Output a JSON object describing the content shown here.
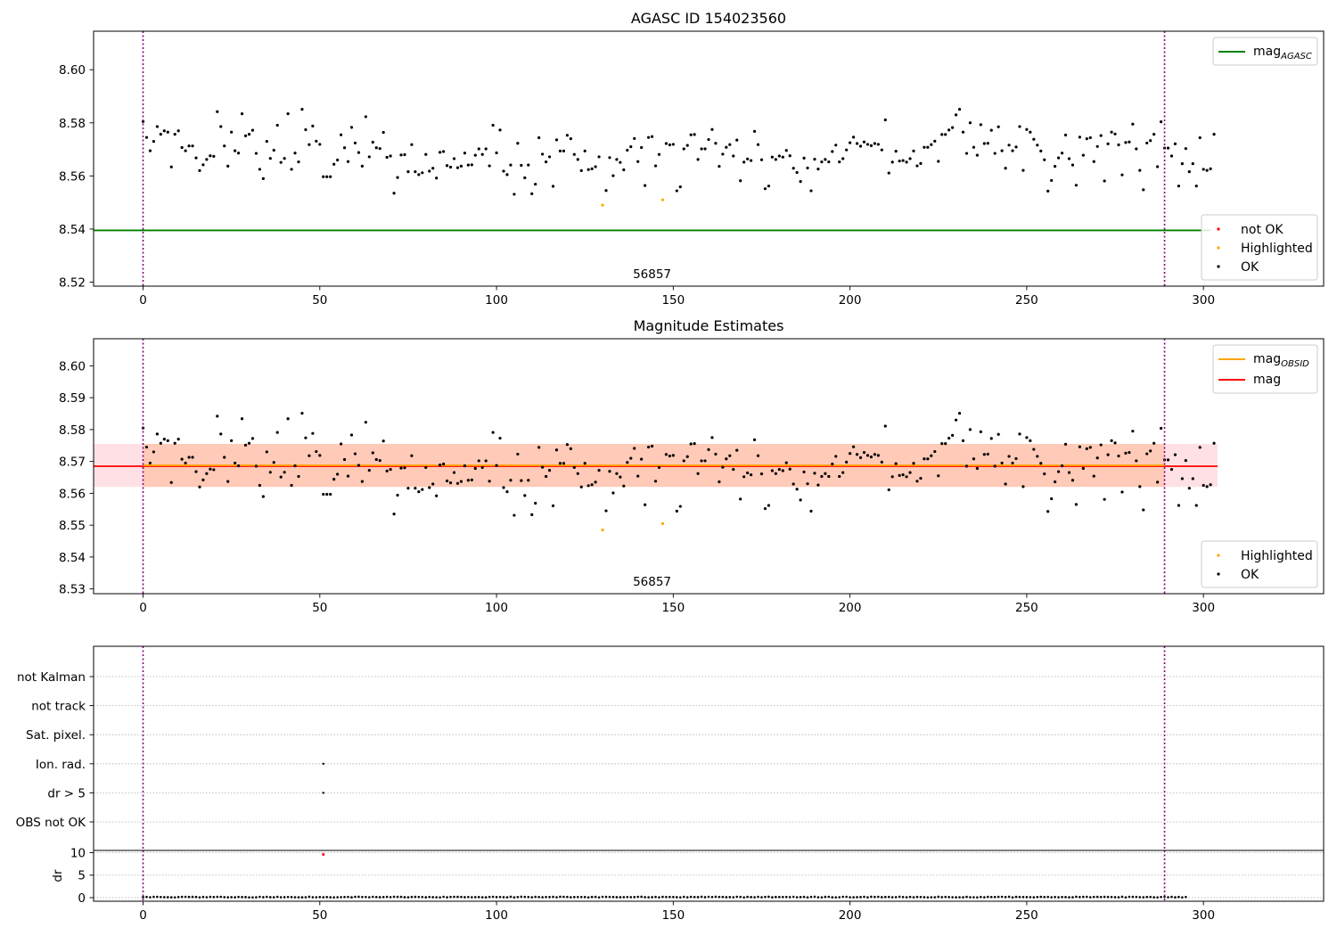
{
  "chart_data": [
    {
      "id": "agasc",
      "type": "scatter",
      "title": "AGASC ID 154023560",
      "annotation": "56857",
      "xlim": [
        -14,
        334
      ],
      "ylim": [
        8.5185,
        8.6145
      ],
      "xticks": [
        0,
        50,
        100,
        150,
        200,
        250,
        300
      ],
      "yticks": [
        8.52,
        8.54,
        8.56,
        8.58,
        8.6
      ],
      "ytick_labels": [
        "8.52",
        "8.54",
        "8.56",
        "8.58",
        "8.60"
      ],
      "vlines": [
        0,
        289
      ],
      "mag_agasc": 8.5395,
      "legend_lines": [
        {
          "label": "mag",
          "sub": "AGASC",
          "color": "#008000"
        }
      ],
      "legend_points": [
        {
          "label": "not OK",
          "color": "#ff0000"
        },
        {
          "label": "Highlighted",
          "color": "#ffa500"
        },
        {
          "label": "OK",
          "color": "#000000"
        }
      ],
      "highlighted": [
        [
          130,
          8.549
        ],
        [
          147,
          8.551
        ]
      ]
    },
    {
      "id": "estimates",
      "type": "scatter",
      "title": "Magnitude Estimates",
      "annotation": "56857",
      "xlim": [
        -14,
        334
      ],
      "ylim": [
        8.5285,
        8.6085
      ],
      "xticks": [
        0,
        50,
        100,
        150,
        200,
        250,
        300
      ],
      "yticks": [
        8.53,
        8.54,
        8.55,
        8.56,
        8.57,
        8.58,
        8.59,
        8.6
      ],
      "ytick_labels": [
        "8.53",
        "8.54",
        "8.55",
        "8.56",
        "8.57",
        "8.58",
        "8.59",
        "8.60"
      ],
      "vlines": [
        0,
        289
      ],
      "mag": 8.5685,
      "mag_obsid": 8.5685,
      "band": [
        8.562,
        8.5755
      ],
      "band_xrange": [
        -14,
        304
      ],
      "legend_lines": [
        {
          "label": "mag",
          "sub": "OBSID",
          "color": "#ffa500"
        },
        {
          "label": "mag",
          "sub": "",
          "color": "#ff0000"
        }
      ],
      "legend_points": [
        {
          "label": "Highlighted",
          "color": "#ffa500"
        },
        {
          "label": "OK",
          "color": "#000000"
        }
      ],
      "highlighted": [
        [
          130,
          8.5485
        ],
        [
          147,
          8.5505
        ]
      ]
    },
    {
      "id": "flags",
      "type": "scatter",
      "xlim": [
        -14,
        334
      ],
      "categories": [
        "not Kalman",
        "not track",
        "Sat. pixel.",
        "Ion. rad.",
        "dr > 5",
        "OBS not OK"
      ],
      "vlines": [
        0,
        289
      ],
      "flag_points": [
        {
          "x": 51,
          "category": "Ion. rad."
        },
        {
          "x": 51,
          "category": "dr > 5"
        }
      ]
    },
    {
      "id": "dr",
      "type": "scatter",
      "ylabel": "dr",
      "xlim": [
        -14,
        334
      ],
      "ylim": [
        -0.8,
        10.5
      ],
      "xticks": [
        0,
        50,
        100,
        150,
        200,
        250,
        300
      ],
      "yticks": [
        0,
        5,
        10
      ],
      "ytick_labels": [
        "0",
        "5",
        "10"
      ],
      "vlines": [
        0,
        289
      ],
      "outliers": [
        [
          51,
          9.6
        ]
      ]
    }
  ],
  "series_mag": [
    8.5805,
    8.5745,
    8.5695,
    8.573,
    8.5786,
    8.5757,
    8.577,
    8.5765,
    8.5634,
    8.5757,
    8.577,
    8.5707,
    8.5695,
    8.5713,
    8.5713,
    8.5668,
    8.562,
    8.5642,
    8.5662,
    8.5676,
    8.5674,
    8.5842,
    8.5786,
    8.5713,
    8.5637,
    8.5765,
    8.5695,
    8.5686,
    8.5834,
    8.5751,
    8.5757,
    8.5772,
    8.5685,
    8.5625,
    8.559,
    8.573,
    8.5666,
    8.5697,
    8.5791,
    8.5651,
    8.5666,
    8.5834,
    8.5625,
    8.5686,
    8.5653,
    8.5851,
    8.5774,
    8.5718,
    8.5788,
    8.5731,
    8.5719,
    8.5597,
    8.5597,
    8.5597,
    8.5644,
    8.566,
    8.5755,
    8.5706,
    8.5654,
    8.5783,
    8.5724,
    8.5688,
    8.5637,
    8.5823,
    8.5672,
    8.5727,
    8.5706,
    8.5703,
    8.5764,
    8.567,
    8.5675,
    8.5535,
    8.5594,
    8.5679,
    8.568,
    8.5616,
    8.5718,
    8.5616,
    8.5605,
    8.5612,
    8.5681,
    8.5618,
    8.5629,
    8.5592,
    8.5689,
    8.5692,
    8.5639,
    8.5633,
    8.5665,
    8.5631,
    8.5637,
    8.5686,
    8.5641,
    8.5642,
    8.5678,
    8.5702,
    8.5681,
    8.5702,
    8.5638,
    8.5791,
    8.5687,
    8.5773,
    8.5618,
    8.5605,
    8.5641,
    8.5531,
    8.5723,
    8.564,
    8.5593,
    8.5641,
    8.5533,
    8.5569,
    8.5744,
    8.5682,
    8.5653,
    8.5672,
    8.5561,
    8.5736,
    8.5694,
    8.5694,
    8.5753,
    8.574,
    8.5681,
    8.5662,
    8.562,
    8.5694,
    8.5624,
    8.5627,
    8.5635,
    8.5672,
    8.5697,
    8.5545,
    8.5669,
    8.5601,
    8.5662,
    8.5651,
    8.5623,
    8.5697,
    8.571,
    8.5741,
    8.5654,
    8.5707,
    8.5564,
    8.5745,
    8.5748,
    8.5638,
    8.5681,
    8.5616,
    8.5722,
    8.5717,
    8.5719,
    8.5544,
    8.5559,
    8.5702,
    8.5715,
    8.5755,
    8.5756,
    8.5662,
    8.5702,
    8.5702,
    8.5737,
    8.5775,
    8.5723,
    8.5636,
    8.5682,
    8.5708,
    8.5718,
    8.5675,
    8.5735,
    8.5582,
    8.5652,
    8.5664,
    8.5658,
    8.5768,
    8.5718,
    8.5661,
    8.5552,
    8.5562,
    8.5671,
    8.5662,
    8.5675,
    8.5671,
    8.5696,
    8.5676,
    8.5629,
    8.5613,
    8.5579,
    8.5667,
    8.563,
    8.5544,
    8.5663,
    8.5626,
    8.5653,
    8.5662,
    8.5653,
    8.5692,
    8.5716,
    8.5653,
    8.5665,
    8.5698,
    8.5725,
    8.5746,
    8.5722,
    8.5712,
    8.5728,
    8.5719,
    8.5714,
    8.5722,
    8.5719,
    8.5698,
    8.5811,
    8.5611,
    8.5652,
    8.5693,
    8.5656,
    8.5658,
    8.5652,
    8.5665,
    8.5694,
    8.5638,
    8.5647,
    8.5708,
    8.5708,
    8.5718,
    8.5731,
    8.5655,
    8.5756,
    8.5756,
    8.5773,
    8.5782,
    8.583,
    8.5851,
    8.5765,
    8.5685,
    8.58,
    8.5708,
    8.5678,
    8.5793,
    8.5722,
    8.5723,
    8.5772,
    8.5685,
    8.5785,
    8.5695,
    8.5629,
    8.5716,
    8.5695,
    8.5709,
    8.5786,
    8.5621,
    8.5775,
    8.5765,
    8.5738,
    8.5716,
    8.5694,
    8.5661,
    8.5543,
    8.5583,
    8.5636,
    8.5668,
    8.5686,
    8.5754,
    8.5665,
    8.5641,
    8.5565,
    8.5746,
    8.5678,
    8.574,
    8.5744,
    8.5654,
    8.5711,
    8.5752,
    8.5581,
    8.5721,
    8.5765,
    8.5758,
    8.5717,
    8.5604,
    8.5726,
    8.5728,
    8.5795,
    8.5702,
    8.5621,
    8.5548,
    8.5724,
    8.5733,
    8.5757,
    8.5635,
    8.5804,
    8.5705,
    8.5705,
    8.5675,
    8.5721,
    8.5562,
    8.5646,
    8.5703,
    8.5616,
    8.5646,
    8.5562,
    8.5744,
    8.5625,
    8.5621,
    8.5627,
    8.5757
  ],
  "series_dr": [
    0.12,
    0.16,
    0.08,
    0.17,
    0.18,
    0.13,
    0.11,
    0.1,
    0.07,
    0.06,
    0.12,
    0.17,
    0.19,
    0.15,
    0.17,
    0.15,
    0.06,
    0.15,
    0.09,
    0.17,
    0.13,
    0.18,
    0.19,
    0.11,
    0.07,
    0.1,
    0.07,
    0.16,
    0.12,
    0.12,
    0.06,
    0.06,
    0.07,
    0.18,
    0.1,
    0.18,
    0.1,
    0.08,
    0.18,
    0.08,
    0.1,
    0.14,
    0.12,
    0.09,
    0.08,
    0.07,
    0.09,
    0.2,
    0.08,
    0.08,
    0.13,
    0.09,
    0.13,
    0.07,
    0.06,
    0.09,
    0.11,
    0.14,
    0.16,
    0.07,
    0.19,
    0.2,
    0.14,
    0.14,
    0.09,
    0.19,
    0.14,
    0.1,
    0.13,
    0.17,
    0.11,
    0.2,
    0.17,
    0.17,
    0.1,
    0.09,
    0.15,
    0.17,
    0.14,
    0.13,
    0.07,
    0.16,
    0.11,
    0.08,
    0.06,
    0.19,
    0.07,
    0.16,
    0.18,
    0.17,
    0.16,
    0.1,
    0.14,
    0.08,
    0.11,
    0.12,
    0.08,
    0.07,
    0.16,
    0.18,
    0.12,
    0.14,
    0.1,
    0.08,
    0.2,
    0.06,
    0.13,
    0.2,
    0.16,
    0.13,
    0.09,
    0.18,
    0.14,
    0.08,
    0.13,
    0.12,
    0.17,
    0.09,
    0.2,
    0.19,
    0.16,
    0.08,
    0.12,
    0.14,
    0.14,
    0.13,
    0.06,
    0.15,
    0.17,
    0.06,
    0.19,
    0.17,
    0.16,
    0.15,
    0.1,
    0.1,
    0.11,
    0.14,
    0.11,
    0.12,
    0.18,
    0.2,
    0.11,
    0.08,
    0.1,
    0.15,
    0.06,
    0.17,
    0.14,
    0.16,
    0.14,
    0.1,
    0.06,
    0.17,
    0.07,
    0.17,
    0.13,
    0.12,
    0.2,
    0.1,
    0.18,
    0.13,
    0.2,
    0.16,
    0.16,
    0.1,
    0.12,
    0.09,
    0.18,
    0.16,
    0.06,
    0.17,
    0.12,
    0.09,
    0.18,
    0.08,
    0.16,
    0.2,
    0.07,
    0.15,
    0.13,
    0.13,
    0.15,
    0.11,
    0.19,
    0.09,
    0.12,
    0.17,
    0.06,
    0.16,
    0.2,
    0.08,
    0.06,
    0.17,
    0.19,
    0.07,
    0.06,
    0.09,
    0.19,
    0.19,
    0.09,
    0.08,
    0.11,
    0.12,
    0.18,
    0.07,
    0.2,
    0.15,
    0.19,
    0.1,
    0.15,
    0.16,
    0.08,
    0.11,
    0.2,
    0.13,
    0.08,
    0.16,
    0.08,
    0.15,
    0.13,
    0.1,
    0.06,
    0.08,
    0.09,
    0.2,
    0.11,
    0.16,
    0.12,
    0.09,
    0.07,
    0.09,
    0.08,
    0.17,
    0.09,
    0.09,
    0.06,
    0.15,
    0.08,
    0.17,
    0.14,
    0.13,
    0.17,
    0.19,
    0.12,
    0.2,
    0.06,
    0.17,
    0.15,
    0.13,
    0.12,
    0.11,
    0.07,
    0.14,
    0.17,
    0.14,
    0.16,
    0.08,
    0.13,
    0.08,
    0.13,
    0.12,
    0.08,
    0.09,
    0.2,
    0.12,
    0.17,
    0.18,
    0.09,
    0.16,
    0.17,
    0.14,
    0.17,
    0.15,
    0.13,
    0.1,
    0.09,
    0.2,
    0.06,
    0.19,
    0.17,
    0.16,
    0.11,
    0.07,
    0.15,
    0.16,
    0.07,
    0.06,
    0.14,
    0.19,
    0.08,
    0.17,
    0.07,
    0.15,
    0.06,
    0.14
  ]
}
